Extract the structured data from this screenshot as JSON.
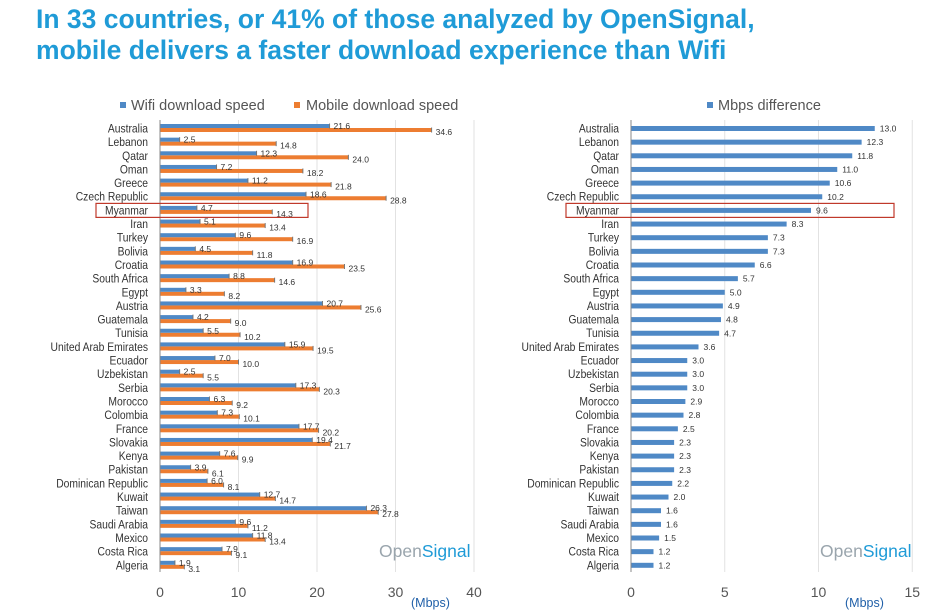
{
  "headline": {
    "line1": "In 33 countries, or 41% of those analyzed by OpenSignal,",
    "line2": "mobile delivers a faster download experience than Wifi"
  },
  "colors": {
    "headline": "#1f9bd7",
    "wifi": "#4f89c6",
    "mobile": "#ed7d31",
    "difference": "#4f89c6",
    "highlight": "#c0392b",
    "watermark_open": "#9aa5ad",
    "watermark_signal": "#1f9bd7"
  },
  "chart_data": [
    {
      "type": "bar",
      "orientation": "horizontal",
      "categories": [
        "Australia",
        "Lebanon",
        "Qatar",
        "Oman",
        "Greece",
        "Czech Republic",
        "Myanmar",
        "Iran",
        "Turkey",
        "Bolivia",
        "Croatia",
        "South Africa",
        "Egypt",
        "Austria",
        "Guatemala",
        "Tunisia",
        "United Arab Emirates",
        "Ecuador",
        "Uzbekistan",
        "Serbia",
        "Morocco",
        "Colombia",
        "France",
        "Slovakia",
        "Kenya",
        "Pakistan",
        "Dominican Republic",
        "Kuwait",
        "Taiwan",
        "Saudi Arabia",
        "Mexico",
        "Costa Rica",
        "Algeria"
      ],
      "series": [
        {
          "name": "Wifi download speed",
          "values": [
            21.6,
            2.5,
            12.3,
            7.2,
            11.2,
            18.6,
            4.7,
            5.1,
            9.6,
            4.5,
            16.9,
            8.8,
            3.3,
            20.7,
            4.2,
            5.5,
            15.9,
            7.0,
            2.5,
            17.3,
            6.3,
            7.3,
            17.7,
            19.4,
            7.6,
            3.9,
            6.0,
            12.7,
            26.3,
            9.6,
            11.8,
            7.9,
            1.9
          ]
        },
        {
          "name": "Mobile download speed",
          "values": [
            34.6,
            14.8,
            24.0,
            18.2,
            21.8,
            28.8,
            14.3,
            13.4,
            16.9,
            11.8,
            23.5,
            14.6,
            8.2,
            25.6,
            9.0,
            10.2,
            19.5,
            10.0,
            5.5,
            20.3,
            9.2,
            10.1,
            20.2,
            21.7,
            9.9,
            6.1,
            8.1,
            14.7,
            27.8,
            11.2,
            13.4,
            9.1,
            3.1
          ]
        }
      ],
      "x_ticks": [
        "0",
        "10",
        "20",
        "30",
        "40"
      ],
      "xlim": [
        0,
        40
      ],
      "xlabel": "(Mbps)",
      "legend": "top",
      "highlight": "Myanmar",
      "watermark": {
        "open": "Open",
        "signal": "Signal"
      }
    },
    {
      "type": "bar",
      "orientation": "horizontal",
      "categories": [
        "Australia",
        "Lebanon",
        "Qatar",
        "Oman",
        "Greece",
        "Czech Republic",
        "Myanmar",
        "Iran",
        "Turkey",
        "Bolivia",
        "Croatia",
        "South Africa",
        "Egypt",
        "Austria",
        "Guatemala",
        "Tunisia",
        "United Arab Emirates",
        "Ecuador",
        "Uzbekistan",
        "Serbia",
        "Morocco",
        "Colombia",
        "France",
        "Slovakia",
        "Kenya",
        "Pakistan",
        "Dominican Republic",
        "Kuwait",
        "Taiwan",
        "Saudi Arabia",
        "Mexico",
        "Costa Rica",
        "Algeria"
      ],
      "series": [
        {
          "name": "Mbps difference",
          "values": [
            13.0,
            12.3,
            11.8,
            11.0,
            10.6,
            10.2,
            9.6,
            8.3,
            7.3,
            7.3,
            6.6,
            5.7,
            5.0,
            4.9,
            4.8,
            4.7,
            3.6,
            3.0,
            3.0,
            3.0,
            2.9,
            2.8,
            2.5,
            2.3,
            2.3,
            2.3,
            2.2,
            2.0,
            1.6,
            1.6,
            1.5,
            1.2,
            1.2
          ]
        }
      ],
      "x_ticks": [
        "0",
        "5",
        "10",
        "15"
      ],
      "xlim": [
        0,
        15
      ],
      "xlabel": "(Mbps)",
      "legend": "top",
      "highlight": "Myanmar",
      "watermark": {
        "open": "Open",
        "signal": "Signal"
      }
    }
  ]
}
